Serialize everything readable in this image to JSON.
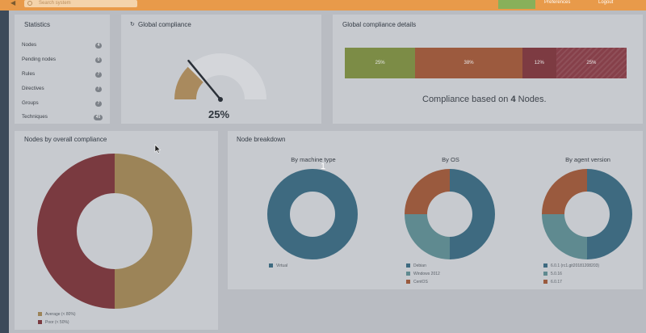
{
  "topbar": {
    "search_placeholder": "Search system",
    "menu": [
      "Preferences",
      "Logout"
    ]
  },
  "statistics": {
    "title": "Statistics",
    "items": [
      {
        "label": "Nodes",
        "count": "4"
      },
      {
        "label": "Pending nodes",
        "count": "0"
      },
      {
        "label": "Rules",
        "count": "7"
      },
      {
        "label": "Directives",
        "count": "7"
      },
      {
        "label": "Groups",
        "count": "7"
      },
      {
        "label": "Techniques",
        "count": "45"
      }
    ]
  },
  "global_compliance": {
    "title": "Global compliance",
    "value": 25,
    "label": "25%"
  },
  "compliance_details": {
    "title": "Global compliance details",
    "segments": [
      {
        "label": "25%",
        "value": 25,
        "color": "#7c8c46"
      },
      {
        "label": "38%",
        "value": 38,
        "color": "#9c5a3e"
      },
      {
        "label": "12%",
        "value": 12,
        "color": "#7d3b42"
      },
      {
        "label": "25%",
        "value": 25,
        "color": "#86404a"
      }
    ],
    "summary_prefix": "Compliance based on ",
    "summary_count": "4",
    "summary_suffix": " Nodes."
  },
  "nodes_by_compliance": {
    "title": "Nodes by overall compliance",
    "legend": [
      "Average (< 80%)",
      "Poor (< 50%)"
    ]
  },
  "node_breakdown": {
    "title": "Node breakdown",
    "cursor_label": "1",
    "charts": [
      {
        "title": "By machine type",
        "legend": [
          "Virtual"
        ]
      },
      {
        "title": "By OS",
        "legend": [
          "Debian",
          "Windows 2012",
          "CentOS"
        ]
      },
      {
        "title": "By agent version",
        "legend": [
          "6.0.1 (rc1.git20181208203)",
          "5.0.16",
          "6.0.17"
        ]
      }
    ]
  },
  "chart_data": [
    {
      "type": "pie",
      "title": "Nodes by overall compliance",
      "categories": [
        "Average (< 80%)",
        "Poor (< 50%)"
      ],
      "values": [
        50,
        50
      ],
      "colors": [
        "#9c8458",
        "#7a3a40"
      ]
    },
    {
      "type": "pie",
      "title": "By machine type",
      "categories": [
        "Virtual"
      ],
      "values": [
        4
      ],
      "colors": [
        "#3e6a80"
      ]
    },
    {
      "type": "pie",
      "title": "By OS",
      "categories": [
        "Debian",
        "Windows 2012",
        "CentOS"
      ],
      "values": [
        2,
        1,
        1
      ],
      "colors": [
        "#3e6a80",
        "#5f8a90",
        "#9a5a3e"
      ]
    },
    {
      "type": "pie",
      "title": "By agent version",
      "categories": [
        "6.0.1 (rc1.git20181208203)",
        "5.0.16",
        "6.0.17"
      ],
      "values": [
        2,
        1,
        1
      ],
      "colors": [
        "#3e6a80",
        "#5f8a90",
        "#9a5a3e"
      ]
    }
  ]
}
